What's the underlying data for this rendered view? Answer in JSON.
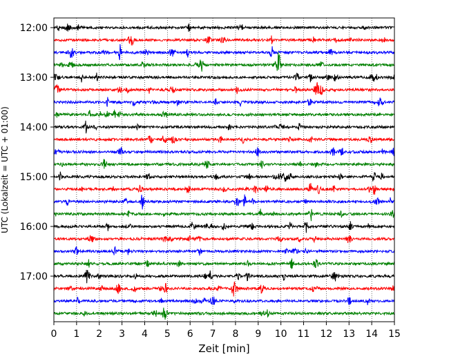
{
  "chart_data": {
    "type": "line",
    "title": "",
    "xlabel": "Zeit  [min]",
    "ylabel": "UTC (Lokalzeit = UTC + 01:00)",
    "xlim": [
      0,
      15
    ],
    "x_ticks": [
      0,
      1,
      2,
      3,
      4,
      5,
      6,
      7,
      8,
      9,
      10,
      11,
      12,
      13,
      14,
      15
    ],
    "y_ticks": [
      "12:00",
      "13:00",
      "14:00",
      "15:00",
      "16:00",
      "17:00"
    ],
    "grid": "vertical dotted",
    "colors": [
      "#000000",
      "#ff0000",
      "#0000ff",
      "#008000"
    ],
    "traces": [
      {
        "start": "12:00",
        "color": "#000000"
      },
      {
        "start": "12:15",
        "color": "#ff0000"
      },
      {
        "start": "12:30",
        "color": "#0000ff"
      },
      {
        "start": "12:45",
        "color": "#008000"
      },
      {
        "start": "13:00",
        "color": "#000000"
      },
      {
        "start": "13:15",
        "color": "#ff0000"
      },
      {
        "start": "13:30",
        "color": "#0000ff"
      },
      {
        "start": "13:45",
        "color": "#008000"
      },
      {
        "start": "14:00",
        "color": "#000000"
      },
      {
        "start": "14:15",
        "color": "#ff0000"
      },
      {
        "start": "14:30",
        "color": "#0000ff"
      },
      {
        "start": "14:45",
        "color": "#008000"
      },
      {
        "start": "15:00",
        "color": "#000000"
      },
      {
        "start": "15:15",
        "color": "#ff0000"
      },
      {
        "start": "15:30",
        "color": "#0000ff"
      },
      {
        "start": "15:45",
        "color": "#008000"
      },
      {
        "start": "16:00",
        "color": "#000000"
      },
      {
        "start": "16:15",
        "color": "#ff0000"
      },
      {
        "start": "16:30",
        "color": "#0000ff"
      },
      {
        "start": "16:45",
        "color": "#008000"
      },
      {
        "start": "17:00",
        "color": "#000000"
      },
      {
        "start": "17:15",
        "color": "#ff0000"
      },
      {
        "start": "17:30",
        "color": "#0000ff"
      },
      {
        "start": "17:45",
        "color": "#008000"
      }
    ],
    "events": [
      {
        "trace": 2,
        "time": 2.9,
        "amp": 1.4
      },
      {
        "trace": 2,
        "time": 9.6,
        "amp": 1.2
      },
      {
        "trace": 3,
        "time": 6.5,
        "amp": 1.6
      },
      {
        "trace": 3,
        "time": 9.9,
        "amp": 2.0
      },
      {
        "trace": 4,
        "time": 1.2,
        "amp": 1.1
      },
      {
        "trace": 5,
        "time": 11.6,
        "amp": 1.1
      },
      {
        "trace": 8,
        "time": 1.4,
        "amp": 1.0
      },
      {
        "trace": 12,
        "time": 14.1,
        "amp": 1.2
      },
      {
        "trace": 13,
        "time": 3.8,
        "amp": 1.6
      },
      {
        "trace": 13,
        "time": 11.3,
        "amp": 1.1
      },
      {
        "trace": 13,
        "time": 14.1,
        "amp": 1.5
      },
      {
        "trace": 14,
        "time": 3.9,
        "amp": 1.5
      },
      {
        "trace": 14,
        "time": 8.4,
        "amp": 1.3
      },
      {
        "trace": 15,
        "time": 9.1,
        "amp": 1.2
      },
      {
        "trace": 15,
        "time": 11.3,
        "amp": 1.6
      },
      {
        "trace": 16,
        "time": 10.4,
        "amp": 1.0
      },
      {
        "trace": 16,
        "time": 11.1,
        "amp": 1.1
      },
      {
        "trace": 17,
        "time": 11.5,
        "amp": 1.0
      },
      {
        "trace": 20,
        "time": 6.9,
        "amp": 1.0
      },
      {
        "trace": 21,
        "time": 4.9,
        "amp": 1.4
      },
      {
        "trace": 21,
        "time": 7.9,
        "amp": 1.4
      }
    ]
  }
}
